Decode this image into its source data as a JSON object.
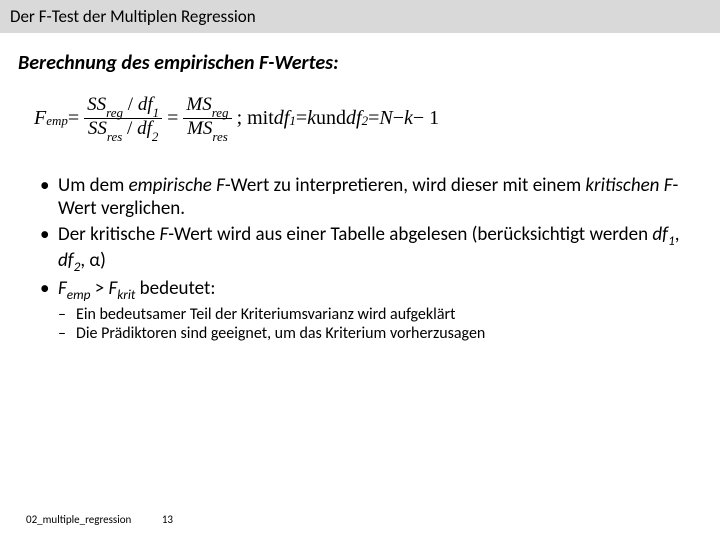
{
  "header": {
    "title": "Der F-Test der Multiplen Regression"
  },
  "subtitle": "Berechnung des empirischen F-Wertes:",
  "formula": {
    "F_label": "F",
    "F_sub": "emp",
    "eq1": " = ",
    "frac1_num_a": "SS",
    "frac1_num_a_sub": "reg",
    "frac1_num_slash": " / ",
    "frac1_num_b": "df",
    "frac1_num_b_sub": "1",
    "frac1_den_a": "SS",
    "frac1_den_a_sub": "res",
    "frac1_den_slash": " / ",
    "frac1_den_b": "df",
    "frac1_den_b_sub": "2",
    "eq2": " = ",
    "frac2_num_a": "MS",
    "frac2_num_a_sub": "reg",
    "frac2_den_a": "MS",
    "frac2_den_a_sub": "res",
    "mit_prefix": " ; mit ",
    "df1_lbl": "df",
    "df1_sub": "1",
    "df1_eq": " = ",
    "df1_val": "k",
    "und": " und ",
    "df2_lbl": "df",
    "df2_sub": "2",
    "df2_eq": " = ",
    "df2_val_a": "N",
    "df2_val_b": " − ",
    "df2_val_c": "k",
    "df2_val_d": " − 1"
  },
  "bullets": {
    "b1a_pre": "Um dem ",
    "b1a_it": "empirische F",
    "b1a_post": "-Wert zu interpretieren, wird dieser mit einem ",
    "b1a_it2": "kritischen F",
    "b1a_post2": "-Wert verglichen.",
    "b1b_pre": "Der kritische ",
    "b1b_it": "F",
    "b1b_mid": "-Wert wird aus einer Tabelle abgelesen (berücksichtigt werden ",
    "b1b_df1": "df",
    "b1b_df1_sub": "1",
    "b1b_comma1": ", ",
    "b1b_df2": "df",
    "b1b_df2_sub": "2",
    "b1b_comma2": ", α)",
    "b1c_F1": "F",
    "b1c_F1_sub": "emp",
    "b1c_gt": " > ",
    "b1c_F2": "F",
    "b1c_F2_sub": "krit",
    "b1c_post": " bedeutet:",
    "b2a": "Ein bedeutsamer Teil der Kriteriumsvarianz wird aufgeklärt",
    "b2b": "Die Prädiktoren sind geeignet, um das Kriterium vorherzusagen"
  },
  "footer": {
    "file": "02_multiple_regression",
    "page": "13"
  }
}
